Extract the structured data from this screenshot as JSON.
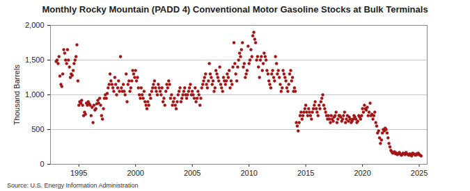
{
  "chart_data": {
    "type": "scatter",
    "title": "Monthly Rocky Mountain (PADD 4) Conventional Motor Gasoline Stocks at Bulk Terminals",
    "y_label": "Thousand Barrels",
    "source": "Source: U.S. Energy Information Administration",
    "color": "#a31515",
    "marker": "circle",
    "grid": true,
    "xlim": [
      1992.5,
      2025.7
    ],
    "xticks": [
      1995,
      2000,
      2005,
      2010,
      2015,
      2020,
      2025
    ],
    "ylim": [
      0,
      2000
    ],
    "yticks": [
      0,
      500,
      {
        "value": 1000,
        "label": "1,000"
      },
      {
        "value": 1500,
        "label": "1,500"
      },
      {
        "value": 2000,
        "label": "2,000"
      }
    ],
    "x": [
      1993.0,
      1993.08,
      1993.17,
      1993.25,
      1993.33,
      1993.42,
      1993.5,
      1993.58,
      1993.67,
      1993.75,
      1993.83,
      1993.92,
      1994.0,
      1994.08,
      1994.17,
      1994.25,
      1994.33,
      1994.42,
      1994.5,
      1994.58,
      1994.67,
      1994.75,
      1994.83,
      1994.92,
      1995.0,
      1995.08,
      1995.17,
      1995.25,
      1995.33,
      1995.42,
      1995.5,
      1995.58,
      1995.67,
      1995.75,
      1995.83,
      1995.92,
      1996.0,
      1996.08,
      1996.17,
      1996.25,
      1996.33,
      1996.42,
      1996.5,
      1996.58,
      1996.67,
      1996.75,
      1996.83,
      1996.92,
      1997.0,
      1997.08,
      1997.17,
      1997.25,
      1997.33,
      1997.42,
      1997.5,
      1997.58,
      1997.67,
      1997.75,
      1997.83,
      1997.92,
      1998.0,
      1998.08,
      1998.17,
      1998.25,
      1998.33,
      1998.42,
      1998.5,
      1998.58,
      1998.67,
      1998.75,
      1998.83,
      1998.92,
      1999.0,
      1999.08,
      1999.17,
      1999.25,
      1999.33,
      1999.42,
      1999.5,
      1999.58,
      1999.67,
      1999.75,
      1999.83,
      1999.92,
      2000.0,
      2000.08,
      2000.17,
      2000.25,
      2000.33,
      2000.42,
      2000.5,
      2000.58,
      2000.67,
      2000.75,
      2000.83,
      2000.92,
      2001.0,
      2001.08,
      2001.17,
      2001.25,
      2001.33,
      2001.42,
      2001.5,
      2001.58,
      2001.67,
      2001.75,
      2001.83,
      2001.92,
      2002.0,
      2002.08,
      2002.17,
      2002.25,
      2002.33,
      2002.42,
      2002.5,
      2002.58,
      2002.67,
      2002.75,
      2002.83,
      2002.92,
      2003.0,
      2003.08,
      2003.17,
      2003.25,
      2003.33,
      2003.42,
      2003.5,
      2003.58,
      2003.67,
      2003.75,
      2003.83,
      2003.92,
      2004.0,
      2004.08,
      2004.17,
      2004.25,
      2004.33,
      2004.42,
      2004.5,
      2004.58,
      2004.67,
      2004.75,
      2004.83,
      2004.92,
      2005.0,
      2005.08,
      2005.17,
      2005.25,
      2005.33,
      2005.42,
      2005.5,
      2005.58,
      2005.67,
      2005.75,
      2005.83,
      2005.92,
      2006.0,
      2006.08,
      2006.17,
      2006.25,
      2006.33,
      2006.42,
      2006.5,
      2006.58,
      2006.67,
      2006.75,
      2006.83,
      2006.92,
      2007.0,
      2007.08,
      2007.17,
      2007.25,
      2007.33,
      2007.42,
      2007.5,
      2007.58,
      2007.67,
      2007.75,
      2007.83,
      2007.92,
      2008.0,
      2008.08,
      2008.17,
      2008.25,
      2008.33,
      2008.42,
      2008.5,
      2008.58,
      2008.67,
      2008.75,
      2008.83,
      2008.92,
      2009.0,
      2009.08,
      2009.17,
      2009.25,
      2009.33,
      2009.42,
      2009.5,
      2009.58,
      2009.67,
      2009.75,
      2009.83,
      2009.92,
      2010.0,
      2010.08,
      2010.17,
      2010.25,
      2010.33,
      2010.42,
      2010.5,
      2010.58,
      2010.67,
      2010.75,
      2010.83,
      2010.92,
      2011.0,
      2011.08,
      2011.17,
      2011.25,
      2011.33,
      2011.42,
      2011.5,
      2011.58,
      2011.67,
      2011.75,
      2011.83,
      2011.92,
      2012.0,
      2012.08,
      2012.17,
      2012.25,
      2012.33,
      2012.42,
      2012.5,
      2012.58,
      2012.67,
      2012.75,
      2012.83,
      2012.92,
      2013.0,
      2013.08,
      2013.17,
      2013.25,
      2013.33,
      2013.42,
      2013.5,
      2013.58,
      2013.67,
      2013.75,
      2013.83,
      2013.92,
      2014.0,
      2014.08,
      2014.17,
      2014.25,
      2014.33,
      2014.42,
      2014.5,
      2014.58,
      2014.67,
      2014.75,
      2014.83,
      2014.92,
      2015.0,
      2015.08,
      2015.17,
      2015.25,
      2015.33,
      2015.42,
      2015.5,
      2015.58,
      2015.67,
      2015.75,
      2015.83,
      2015.92,
      2016.0,
      2016.08,
      2016.17,
      2016.25,
      2016.33,
      2016.42,
      2016.5,
      2016.58,
      2016.67,
      2016.75,
      2016.83,
      2016.92,
      2017.0,
      2017.08,
      2017.17,
      2017.25,
      2017.33,
      2017.42,
      2017.5,
      2017.58,
      2017.67,
      2017.75,
      2017.83,
      2017.92,
      2018.0,
      2018.08,
      2018.17,
      2018.25,
      2018.33,
      2018.42,
      2018.5,
      2018.58,
      2018.67,
      2018.75,
      2018.83,
      2018.92,
      2019.0,
      2019.08,
      2019.17,
      2019.25,
      2019.33,
      2019.42,
      2019.5,
      2019.58,
      2019.67,
      2019.75,
      2019.83,
      2019.92,
      2020.0,
      2020.08,
      2020.17,
      2020.25,
      2020.33,
      2020.42,
      2020.5,
      2020.58,
      2020.67,
      2020.75,
      2020.83,
      2020.92,
      2021.0,
      2021.08,
      2021.17,
      2021.25,
      2021.33,
      2021.42,
      2021.5,
      2021.58,
      2021.67,
      2021.75,
      2021.83,
      2021.92,
      2022.0,
      2022.08,
      2022.17,
      2022.25,
      2022.33,
      2022.42,
      2022.5,
      2022.58,
      2022.67,
      2022.75,
      2022.83,
      2022.92,
      2023.0,
      2023.08,
      2023.17,
      2023.25,
      2023.33,
      2023.42,
      2023.5,
      2023.58,
      2023.67,
      2023.75,
      2023.83,
      2023.92,
      2024.0,
      2024.08,
      2024.17,
      2024.25,
      2024.33,
      2024.42,
      2024.5,
      2024.58,
      2024.67,
      2024.75,
      2024.83,
      2024.92,
      2025.0,
      2025.08,
      2025.17
    ],
    "values": [
      1480,
      1500,
      1450,
      1550,
      1270,
      1150,
      1120,
      1300,
      1650,
      1600,
      1500,
      1450,
      1650,
      1500,
      1400,
      1250,
      1300,
      1280,
      1350,
      1450,
      1500,
      1550,
      1720,
      1200,
      850,
      900,
      880,
      920,
      850,
      700,
      750,
      720,
      880,
      850,
      900,
      870,
      850,
      700,
      820,
      600,
      850,
      780,
      800,
      870,
      920,
      880,
      950,
      850,
      700,
      650,
      800,
      950,
      1000,
      950,
      1020,
      1100,
      1150,
      1300,
      1200,
      1150,
      1100,
      1050,
      1250,
      1150,
      1000,
      1100,
      1200,
      1050,
      1550,
      1100,
      1050,
      1150,
      1050,
      1000,
      1300,
      900,
      1150,
      1200,
      1050,
      1100,
      1200,
      1350,
      1300,
      1250,
      1350,
      1200,
      1250,
      1100,
      1000,
      950,
      1100,
      1000,
      950,
      1050,
      900,
      850,
      800,
      900,
      850,
      1000,
      950,
      1050,
      1100,
      1150,
      1200,
      1100,
      1050,
      1000,
      1150,
      1100,
      1050,
      1000,
      1100,
      900,
      950,
      850,
      1050,
      1150,
      1100,
      1200,
      1150,
      950,
      1000,
      850,
      900,
      950,
      850,
      800,
      900,
      1000,
      1050,
      1100,
      900,
      950,
      1000,
      1050,
      1100,
      1000,
      950,
      1000,
      1050,
      1100,
      1150,
      1000,
      1050,
      1000,
      950,
      1100,
      900,
      950,
      1050,
      1000,
      850,
      950,
      1100,
      1150,
      1200,
      1250,
      1300,
      1150,
      1100,
      1200,
      1450,
      1300,
      1250,
      1150,
      1200,
      1050,
      1100,
      1350,
      1300,
      1250,
      1200,
      1400,
      1150,
      1100,
      1050,
      1250,
      1200,
      1150,
      1200,
      1300,
      1250,
      1350,
      1100,
      1200,
      1150,
      1400,
      1750,
      1450,
      1300,
      1200,
      1400,
      1500,
      1600,
      1550,
      1650,
      1750,
      1400,
      1450,
      1250,
      1300,
      1350,
      1700,
      1450,
      1500,
      1650,
      1550,
      1850,
      1900,
      1800,
      1750,
      1500,
      1550,
      1400,
      1250,
      1500,
      1550,
      1350,
      1450,
      1600,
      1550,
      1500,
      1350,
      1300,
      1200,
      1150,
      1100,
      1300,
      1350,
      1250,
      1200,
      1550,
      1450,
      1300,
      1350,
      1250,
      1150,
      1050,
      1100,
      1350,
      1300,
      1250,
      1200,
      1100,
      1050,
      1150,
      1300,
      1350,
      1200,
      1250,
      1050,
      1100,
      1050,
      600,
      550,
      480,
      600,
      700,
      750,
      650,
      700,
      750,
      800,
      850,
      750,
      700,
      800,
      750,
      700,
      650,
      750,
      800,
      850,
      900,
      800,
      750,
      700,
      850,
      800,
      900,
      950,
      1000,
      850,
      800,
      750,
      700,
      650,
      700,
      650,
      600,
      700,
      650,
      620,
      680,
      700,
      750,
      600,
      650,
      700,
      700,
      680,
      620,
      650,
      700,
      750,
      600,
      650,
      700,
      620,
      680,
      650,
      600,
      620,
      650,
      700,
      680,
      650,
      600,
      620,
      700,
      680,
      650,
      700,
      800,
      750,
      850,
      800,
      780,
      820,
      700,
      750,
      880,
      700,
      720,
      650,
      700,
      750,
      600,
      550,
      450,
      480,
      380,
      300,
      350,
      450,
      500,
      480,
      520,
      500,
      450,
      380,
      300,
      250,
      200,
      180,
      160,
      170,
      180,
      150,
      160,
      140,
      150,
      170,
      150,
      130,
      140,
      160,
      150,
      140,
      170,
      150,
      140,
      130,
      150,
      140,
      120,
      160,
      150,
      140,
      130,
      150,
      140,
      160,
      140,
      130,
      120
    ]
  }
}
